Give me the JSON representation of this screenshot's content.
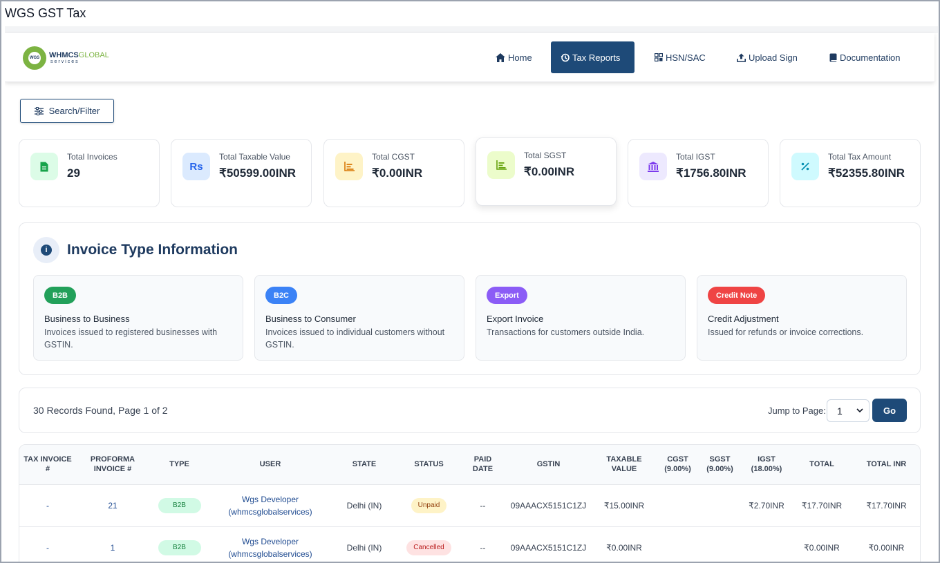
{
  "window": {
    "title": "WGS GST Tax"
  },
  "logo": {
    "brand": "WHMCS",
    "brand_accent": "GLOBAL",
    "tagline": "services",
    "badge": "WGS"
  },
  "nav": {
    "items": [
      {
        "label": "Home",
        "icon": "home-icon"
      },
      {
        "label": "Tax Reports",
        "icon": "history-icon",
        "active": true
      },
      {
        "label": "HSN/SAC",
        "icon": "grid-icon"
      },
      {
        "label": "Upload Sign",
        "icon": "upload-icon"
      },
      {
        "label": "Documentation",
        "icon": "book-icon"
      }
    ]
  },
  "filter": {
    "label": "Search/Filter"
  },
  "stats": [
    {
      "label": "Total Invoices",
      "value": "29",
      "icon": "document-icon",
      "color": "#16a34a",
      "bg": "#dcfce7"
    },
    {
      "label": "Total Taxable Value",
      "value": "₹50599.00INR",
      "icon": "rupee-icon",
      "glyph": "Rs",
      "color": "#2563eb",
      "bg": "#dbeafe"
    },
    {
      "label": "Total CGST",
      "value": "₹0.00INR",
      "icon": "bar-chart-icon",
      "color": "#d97706",
      "bg": "#fef3c7"
    },
    {
      "label": "Total SGST",
      "value": "₹0.00INR",
      "icon": "bar-chart-icon",
      "color": "#65a30d",
      "bg": "#ecfccb"
    },
    {
      "label": "Total IGST",
      "value": "₹1756.80INR",
      "icon": "bank-icon",
      "color": "#7c3aed",
      "bg": "#ede9fe"
    },
    {
      "label": "Total Tax Amount",
      "value": "₹52355.80INR",
      "icon": "percent-icon",
      "color": "#0891b2",
      "bg": "#cffafe"
    }
  ],
  "invoice_info": {
    "title": "Invoice Type Information",
    "types": [
      {
        "badge": "B2B",
        "color": "#22a05a",
        "name": "Business to Business",
        "desc": "Invoices issued to registered businesses with GSTIN."
      },
      {
        "badge": "B2C",
        "color": "#3b82f6",
        "name": "Business to Consumer",
        "desc": "Invoices issued to individual customers without GSTIN."
      },
      {
        "badge": "Export",
        "color": "#8b5cf6",
        "name": "Export Invoice",
        "desc": "Transactions for customers outside India."
      },
      {
        "badge": "Credit Note",
        "color": "#ef4444",
        "name": "Credit Adjustment",
        "desc": "Issued for refunds or invoice corrections."
      }
    ]
  },
  "pagination": {
    "records_text": "30 Records Found, Page 1 of 2",
    "jump_label": "Jump to Page:",
    "page_value": "1",
    "go_label": "Go"
  },
  "table": {
    "headers": [
      "TAX INVOICE #",
      "PROFORMA INVOICE #",
      "TYPE",
      "USER",
      "STATE",
      "STATUS",
      "PAID DATE",
      "GSTIN",
      "TAXABLE VALUE",
      "CGST (9.00%)",
      "SGST (9.00%)",
      "IGST (18.00%)",
      "TOTAL",
      "TOTAL INR"
    ],
    "rows": [
      {
        "tax_invoice": "-",
        "proforma": "21",
        "type": "B2B",
        "user_name": "Wgs Developer",
        "user_company": "(whmcsglobalservices)",
        "state": "Delhi (IN)",
        "status": "Unpaid",
        "paid_date": "--",
        "gstin": "09AAACX5151C1ZJ",
        "taxable": "₹15.00INR",
        "cgst": "",
        "sgst": "",
        "igst": "₹2.70INR",
        "total": "₹17.70INR",
        "total_inr": "₹17.70INR"
      },
      {
        "tax_invoice": "-",
        "proforma": "1",
        "type": "B2B",
        "user_name": "Wgs Developer",
        "user_company": "(whmcsglobalservices)",
        "state": "Delhi (IN)",
        "status": "Cancelled",
        "paid_date": "--",
        "gstin": "09AAACX5151C1ZJ",
        "taxable": "₹0.00INR",
        "cgst": "",
        "sgst": "",
        "igst": "",
        "total": "₹0.00INR",
        "total_inr": "₹0.00INR"
      }
    ]
  }
}
